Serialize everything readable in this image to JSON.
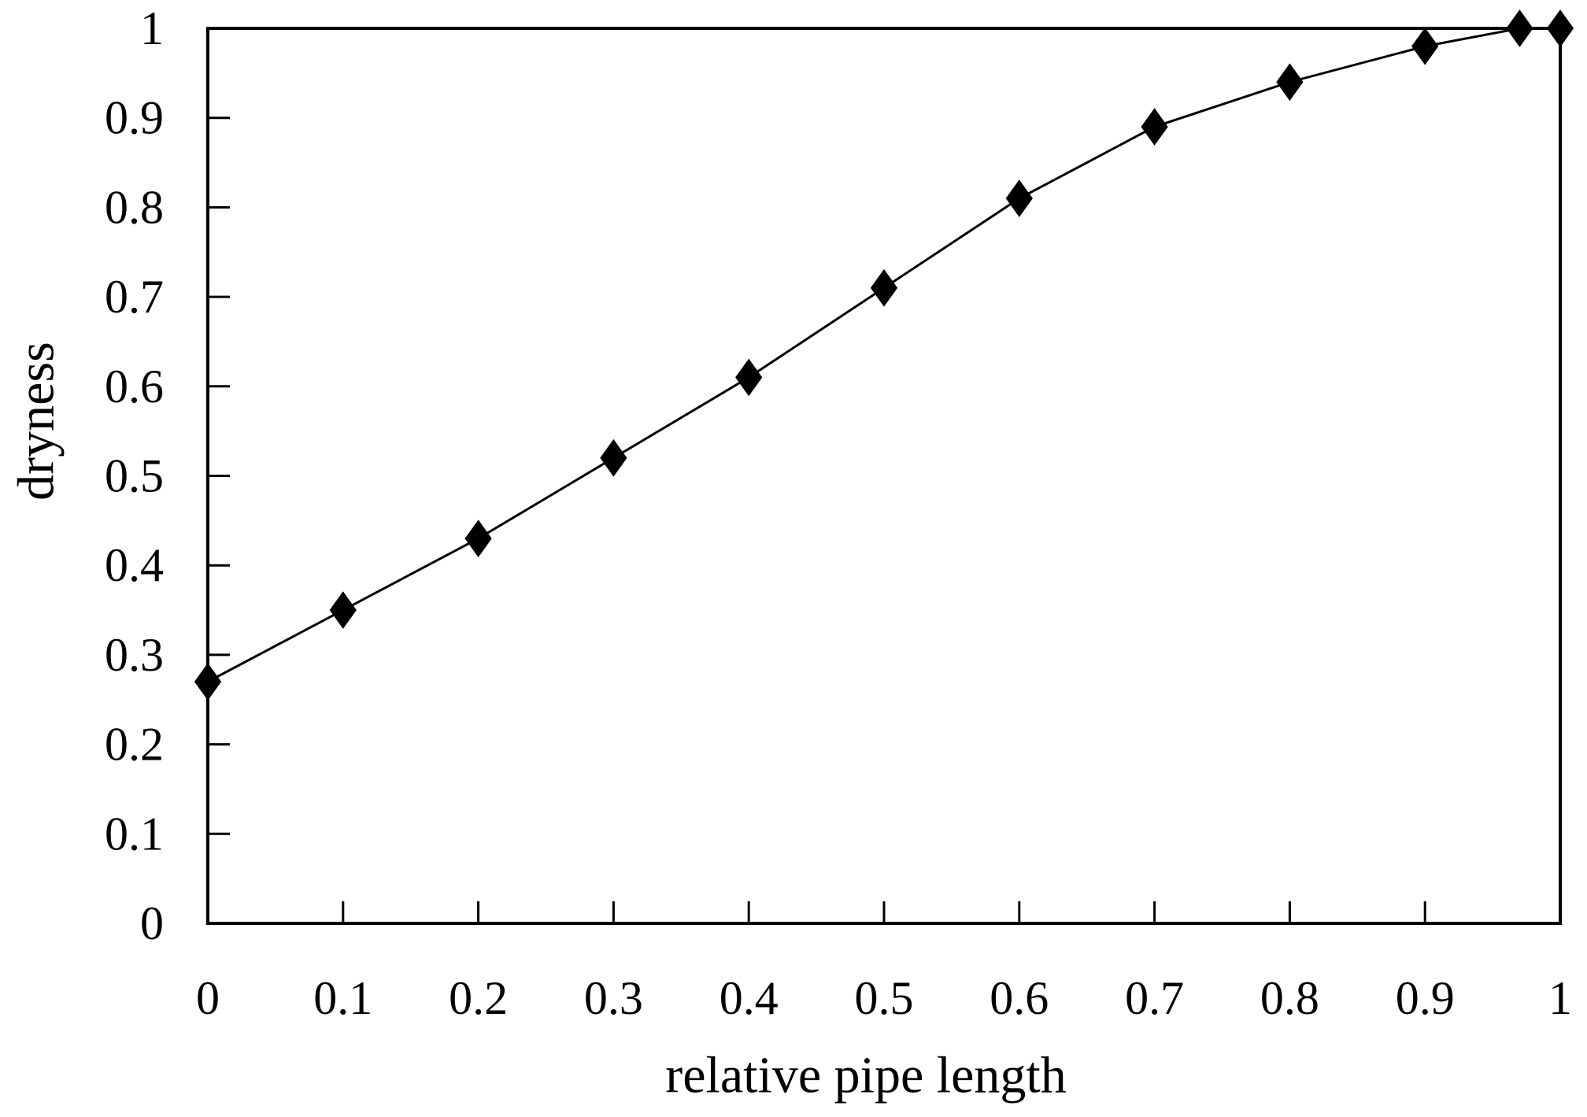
{
  "figure": {
    "background": "#ffffff",
    "axis_color": "#000000",
    "text_color": "#000000"
  },
  "chart_data": {
    "type": "line",
    "title": "",
    "xlabel": "relative pipe length",
    "ylabel": "dryness",
    "xlim": [
      0,
      1
    ],
    "ylim": [
      0,
      1
    ],
    "grid": false,
    "legend": "none",
    "marker": "diamond",
    "line_color": "#000000",
    "marker_color": "#000000",
    "x_ticks": [
      0,
      0.1,
      0.2,
      0.3,
      0.4,
      0.5,
      0.6,
      0.7,
      0.8,
      0.9,
      1
    ],
    "x_tick_labels": [
      "0",
      "0.1",
      "0.2",
      "0.3",
      "0.4",
      "0.5",
      "0.6",
      "0.7",
      "0.8",
      "0.9",
      "1"
    ],
    "y_ticks": [
      0,
      0.1,
      0.2,
      0.3,
      0.4,
      0.5,
      0.6,
      0.7,
      0.8,
      0.9,
      1
    ],
    "y_tick_labels": [
      "0",
      "0.1",
      "0.2",
      "0.3",
      "0.4",
      "0.5",
      "0.6",
      "0.7",
      "0.8",
      "0.9",
      "1"
    ],
    "series": [
      {
        "name": "dryness",
        "x": [
          0,
          0.1,
          0.2,
          0.3,
          0.4,
          0.5,
          0.6,
          0.7,
          0.8,
          0.9,
          0.97,
          1.0
        ],
        "y": [
          0.27,
          0.35,
          0.43,
          0.52,
          0.61,
          0.71,
          0.81,
          0.89,
          0.94,
          0.98,
          1.0,
          1.0
        ]
      }
    ]
  }
}
